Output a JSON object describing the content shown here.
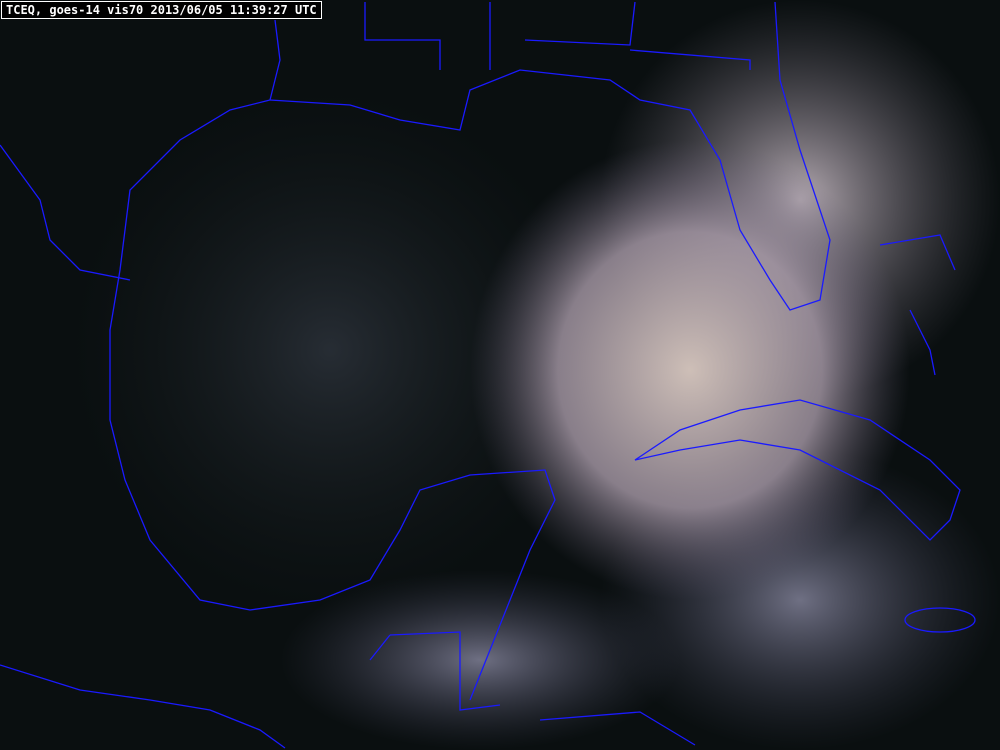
{
  "image": {
    "title": "TCEQ, goes-14 vis70 2013/06/05 11:39:27 UTC",
    "coastline_color": "#1a1aff",
    "cloud_color": "#c8bcc8",
    "background_color": "#0a0f10"
  }
}
